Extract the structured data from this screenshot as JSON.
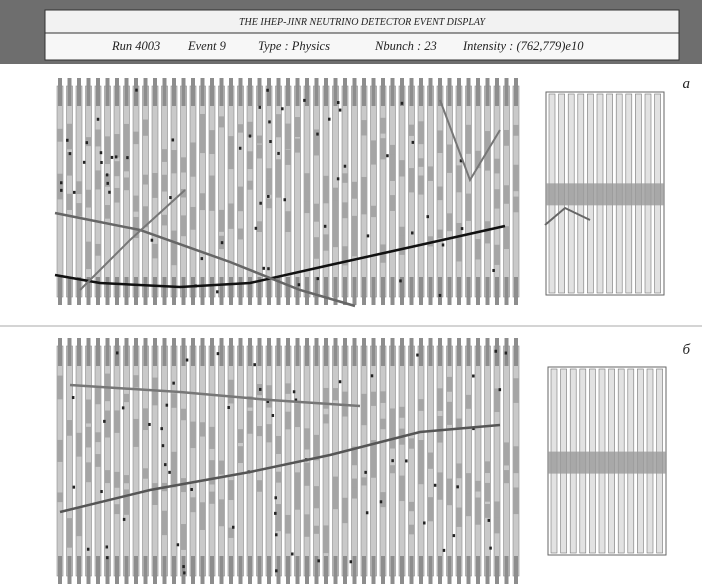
{
  "header": {
    "title": "THE IHEP-JINR NEUTRINO DETECTOR EVENT DISPLAY",
    "info": [
      "Run 4003",
      "Event 9",
      "Type : Physics",
      "Nbunch : 23",
      "Intensity : (762,779)e10"
    ]
  },
  "panels": [
    {
      "label": "а"
    },
    {
      "label": "б"
    }
  ]
}
